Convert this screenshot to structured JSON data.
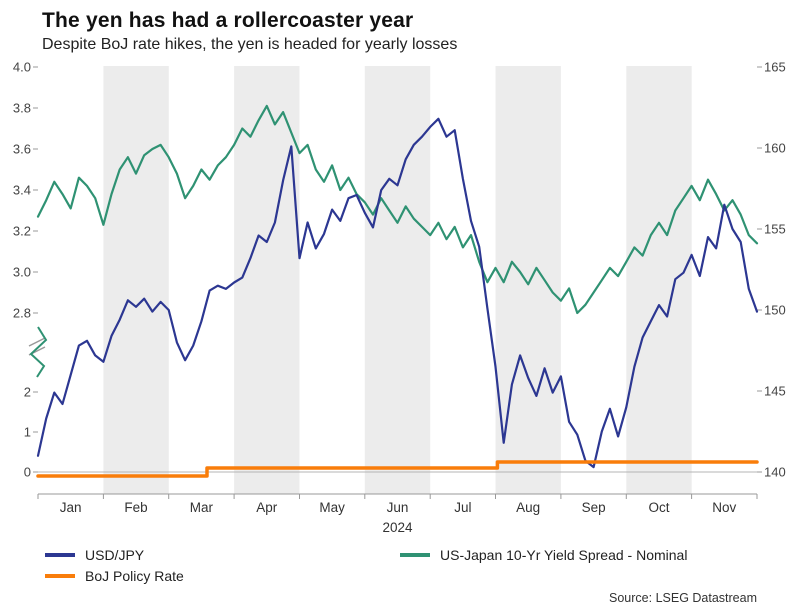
{
  "header": {
    "title": "The yen has had a rollercoaster year",
    "subtitle": "Despite BoJ rate hikes, the yen is headed for yearly losses"
  },
  "source": {
    "text": "Source: LSEG Datastream"
  },
  "legend": [
    {
      "label": "USD/JPY",
      "color": "#2c3792"
    },
    {
      "label": "US-Japan 10-Yr Yield Spread - Nominal",
      "color": "#2f9273"
    },
    {
      "label": "BoJ Policy Rate",
      "color": "#f97d0a"
    }
  ],
  "chart_data": {
    "type": "line",
    "title": "The yen has had a rollercoaster year",
    "subtitle": "Despite BoJ rate hikes, the yen is headed for yearly losses",
    "x_axis": {
      "tick_labels": [
        "Jan",
        "Feb",
        "Mar",
        "Apr",
        "May",
        "Jun",
        "Jul",
        "Aug",
        "Sep",
        "Oct",
        "Nov"
      ],
      "year_label": "2024"
    },
    "shaded_month_indices": [
      1,
      3,
      5,
      7,
      9
    ],
    "left_axis": {
      "upper_tick_labels": [
        "4.0",
        "3.8",
        "3.6",
        "3.4",
        "3.2",
        "3.0",
        "2.8"
      ],
      "lower_tick_labels": [
        "2",
        "1",
        "0"
      ],
      "has_break": true
    },
    "right_axis": {
      "tick_labels": [
        "165",
        "160",
        "155",
        "150",
        "145",
        "140"
      ]
    },
    "series": [
      {
        "id": "spread",
        "name": "US-Japan 10-Yr Yield Spread - Nominal",
        "axis": "left_upper",
        "color": "#2f9273",
        "values": [
          3.27,
          3.35,
          3.44,
          3.38,
          3.31,
          3.46,
          3.42,
          3.36,
          3.23,
          3.38,
          3.5,
          3.56,
          3.48,
          3.57,
          3.6,
          3.62,
          3.56,
          3.48,
          3.36,
          3.42,
          3.5,
          3.45,
          3.52,
          3.56,
          3.62,
          3.7,
          3.66,
          3.74,
          3.81,
          3.72,
          3.78,
          3.68,
          3.58,
          3.62,
          3.5,
          3.44,
          3.52,
          3.4,
          3.46,
          3.38,
          3.34,
          3.28,
          3.36,
          3.3,
          3.24,
          3.32,
          3.26,
          3.22,
          3.18,
          3.24,
          3.16,
          3.22,
          3.12,
          3.18,
          3.05,
          2.95,
          3.02,
          2.95,
          3.05,
          3.0,
          2.94,
          3.02,
          2.96,
          2.9,
          2.86,
          2.92,
          2.8,
          2.84,
          2.9,
          2.96,
          3.02,
          2.98,
          3.05,
          3.12,
          3.08,
          3.18,
          3.24,
          3.18,
          3.3,
          3.36,
          3.42,
          3.35,
          3.45,
          3.38,
          3.3,
          3.35,
          3.28,
          3.18,
          3.14
        ]
      },
      {
        "id": "usdjpy",
        "name": "USD/JPY",
        "axis": "right",
        "color": "#2c3792",
        "values": [
          141.0,
          143.3,
          144.9,
          144.2,
          146.0,
          147.8,
          148.1,
          147.2,
          146.8,
          148.4,
          149.4,
          150.6,
          150.2,
          150.7,
          149.9,
          150.5,
          150.0,
          148.0,
          146.9,
          147.8,
          149.3,
          151.2,
          151.5,
          151.3,
          151.7,
          152.0,
          153.2,
          154.6,
          154.2,
          155.4,
          158.0,
          160.1,
          153.2,
          155.4,
          153.8,
          154.7,
          156.2,
          155.5,
          156.9,
          157.1,
          156.0,
          155.1,
          157.4,
          158.1,
          157.7,
          159.3,
          160.2,
          160.7,
          161.3,
          161.8,
          160.7,
          161.1,
          158.1,
          155.5,
          153.9,
          150.1,
          146.5,
          141.8,
          145.4,
          147.2,
          145.8,
          144.7,
          146.4,
          144.9,
          145.9,
          143.1,
          142.3,
          140.7,
          140.3,
          142.5,
          143.9,
          142.2,
          144.0,
          146.5,
          148.3,
          149.3,
          150.3,
          149.6,
          151.9,
          152.3,
          153.4,
          152.1,
          154.5,
          153.8,
          156.5,
          155.0,
          154.2,
          151.3,
          149.9
        ]
      },
      {
        "id": "boj",
        "name": "BoJ Policy Rate",
        "axis": "left_lower",
        "color": "#f97d0a",
        "step_points": [
          {
            "t": 0.0,
            "value": -0.1
          },
          {
            "t": 0.235,
            "value": 0.1
          },
          {
            "t": 0.639,
            "value": 0.25
          },
          {
            "t": 1.0,
            "value": 0.25
          }
        ]
      }
    ]
  }
}
